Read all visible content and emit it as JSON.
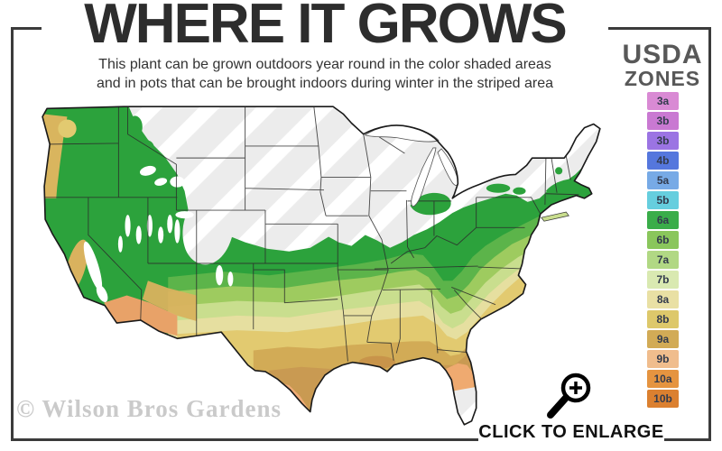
{
  "header": {
    "title": "WHERE IT GROWS",
    "subtitle_line1": "This plant can be grown outdoors year round in the color shaded areas",
    "subtitle_line2": "and in pots that can be brought indoors during winter in the striped area"
  },
  "legend": {
    "title_line1": "USDA",
    "title_line2": "ZONES",
    "zones": [
      {
        "label": "3a",
        "color": "#d98ad4"
      },
      {
        "label": "3b",
        "color": "#c979d2"
      },
      {
        "label": "3b",
        "color": "#9b74e3"
      },
      {
        "label": "4b",
        "color": "#5577dd"
      },
      {
        "label": "5a",
        "color": "#77aae6"
      },
      {
        "label": "5b",
        "color": "#66cede"
      },
      {
        "label": "6a",
        "color": "#3aad49"
      },
      {
        "label": "6b",
        "color": "#8ac65c"
      },
      {
        "label": "7a",
        "color": "#b1d884"
      },
      {
        "label": "7b",
        "color": "#d9e9b1"
      },
      {
        "label": "8a",
        "color": "#e9e0a4"
      },
      {
        "label": "8b",
        "color": "#ddc86b"
      },
      {
        "label": "9a",
        "color": "#d2ab56"
      },
      {
        "label": "9b",
        "color": "#f0bd8d"
      },
      {
        "label": "10a",
        "color": "#e59440"
      },
      {
        "label": "10b",
        "color": "#db8030"
      }
    ]
  },
  "map": {
    "watermark": "© Wilson Bros Gardens",
    "no_grow_pattern": "gray-white-diagonal-stripes",
    "zone_band_colors": [
      "#2ca23c",
      "#5cb44a",
      "#9ecb5f",
      "#c9de8e",
      "#e6dfa0",
      "#e2ca70",
      "#d2ab56",
      "#c99a52",
      "#efaa70",
      "#efa77f"
    ]
  },
  "footer": {
    "cta_label": "CLICK TO ENLARGE",
    "icon": "magnifier-plus-icon"
  },
  "colors": {
    "frame": "#3b3b3b",
    "title_text": "#2d2d2d",
    "legend_title_text": "#585858",
    "watermark_text": "#cacaca"
  }
}
